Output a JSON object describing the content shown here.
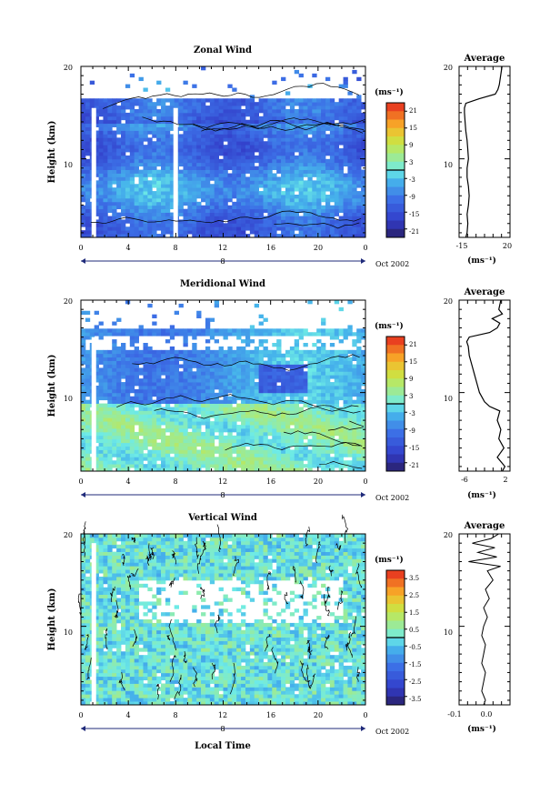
{
  "chart_data": [
    {
      "type": "heatmap",
      "title": "Zonal Wind",
      "ylabel": "Height (km)",
      "unit_label": "(ms⁻¹)",
      "xticks": [
        "0",
        "4",
        "8",
        "12",
        "16",
        "20",
        "0"
      ],
      "yticks": [
        "20",
        "10"
      ],
      "day_label": "8",
      "date_label": "Oct 2002",
      "xlim": [
        0,
        24
      ],
      "ylim": [
        1.5,
        20
      ],
      "colorbar": {
        "vmin": -24,
        "vmax": 24,
        "ticks": [
          "21",
          "15",
          "9",
          "3",
          "-3",
          "-9",
          "-15",
          "-21"
        ],
        "contour_level": 0
      },
      "data_top_km": 16.5,
      "white_columns_hours": [
        0.9,
        7.8
      ],
      "profile": {
        "title": "Average",
        "xlabel": "(ms⁻¹)",
        "xticks": [
          "-15",
          "20"
        ],
        "yticks": [
          "20",
          "10"
        ],
        "xlim": [
          -17,
          21
        ],
        "height_km": [
          1.5,
          2,
          3,
          4,
          5,
          6,
          7,
          8,
          9,
          10,
          11,
          12,
          13,
          14,
          15,
          15.5,
          16,
          16.5,
          17,
          17.5,
          18,
          19,
          20
        ],
        "value": [
          -12,
          -11,
          -10.5,
          -11,
          -10,
          -9.5,
          -10,
          -11,
          -11,
          -10,
          -10.5,
          -11,
          -12,
          -12.5,
          -13,
          -13,
          -12,
          -2,
          10,
          12,
          13,
          14,
          15
        ]
      }
    },
    {
      "type": "heatmap",
      "title": "Meridional Wind",
      "ylabel": "Height (km)",
      "unit_label": "(ms⁻¹)",
      "xticks": [
        "0",
        "4",
        "8",
        "12",
        "16",
        "20",
        "0"
      ],
      "yticks": [
        "20",
        "10"
      ],
      "day_label": "8",
      "date_label": "Oct 2002",
      "xlim": [
        0,
        24
      ],
      "ylim": [
        1.5,
        20
      ],
      "colorbar": {
        "vmin": -24,
        "vmax": 24,
        "ticks": [
          "21",
          "15",
          "9",
          "3",
          "-3",
          "-9",
          "-15",
          "-21"
        ],
        "contour_level": 0
      },
      "data_top_km": 17,
      "white_columns_hours": [
        0.9
      ],
      "profile": {
        "title": "Average",
        "xlabel": "(ms⁻¹)",
        "xticks": [
          "-6",
          "2"
        ],
        "yticks": [
          "20",
          "10"
        ],
        "xlim": [
          -7,
          3
        ],
        "height_km": [
          1.5,
          2,
          3,
          4,
          5,
          6,
          7,
          8,
          8.5,
          9,
          10,
          11,
          12,
          13,
          14,
          15,
          15.5,
          16,
          16.5,
          17,
          17.5,
          18,
          18.5,
          19,
          20
        ],
        "value": [
          1.5,
          2,
          0.5,
          1.8,
          0.8,
          1.2,
          0.5,
          1,
          -1,
          -2,
          -3,
          -3.5,
          -4,
          -4.5,
          -5,
          -5.2,
          -5.5,
          -5,
          -1,
          0.5,
          1,
          -0.5,
          1.5,
          0.8,
          1.2
        ]
      }
    },
    {
      "type": "heatmap",
      "title": "Vertical Wind",
      "ylabel": "Height (km)",
      "xlabel": "Local Time",
      "unit_label": "(ms⁻¹)",
      "xticks": [
        "0",
        "4",
        "8",
        "12",
        "16",
        "20",
        "0"
      ],
      "yticks": [
        "20",
        "10"
      ],
      "day_label": "8",
      "date_label": "Oct 2002",
      "xlim": [
        0,
        24
      ],
      "ylim": [
        1.5,
        20
      ],
      "colorbar": {
        "vmin": -4,
        "vmax": 4,
        "ticks": [
          "3.5",
          "2.5",
          "1.5",
          "0.5",
          "-0.5",
          "-1.5",
          "-2.5",
          "-3.5"
        ],
        "contour_level": 0
      },
      "data_top_km": 20,
      "white_columns_hours": [
        0.9
      ],
      "profile": {
        "title": "Average",
        "xlabel": "(ms⁻¹)",
        "xticks": [
          "-0.1",
          "0.0"
        ],
        "yticks": [
          "20",
          "10"
        ],
        "xlim": [
          -0.15,
          0.12
        ],
        "height_km": [
          1.5,
          2,
          3,
          4,
          5,
          6,
          7,
          8,
          9,
          10,
          11,
          12,
          13,
          14,
          15,
          16,
          16.5,
          17,
          17.5,
          18,
          18.5,
          19,
          19.5,
          20
        ],
        "value": [
          -0.02,
          -0.01,
          -0.03,
          -0.02,
          -0.01,
          -0.03,
          -0.02,
          -0.01,
          -0.03,
          -0.02,
          0.0,
          -0.02,
          0.01,
          -0.01,
          0.03,
          0.0,
          0.07,
          -0.1,
          0.05,
          -0.05,
          0.04,
          -0.08,
          0.02,
          0.06
        ]
      }
    }
  ]
}
